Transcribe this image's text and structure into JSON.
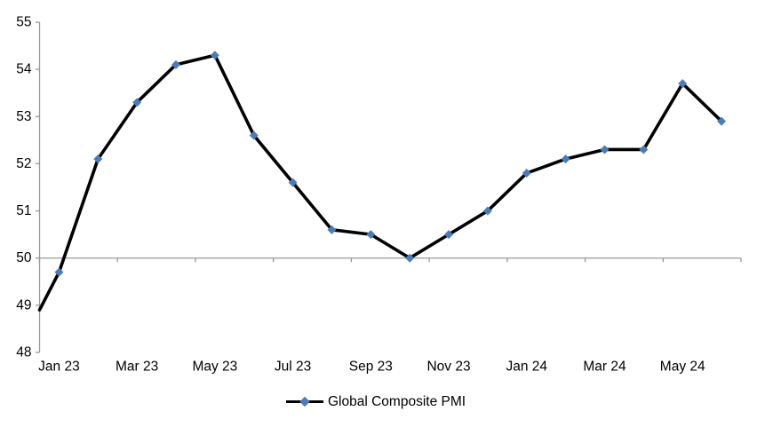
{
  "chart_data": {
    "type": "line",
    "title": "",
    "categories": [
      "Jan 23",
      "Feb 23",
      "Mar 23",
      "Apr 23",
      "May 23",
      "Jun 23",
      "Jul 23",
      "Aug 23",
      "Sep 23",
      "Oct 23",
      "Nov 23",
      "Dec 23",
      "Jan 24",
      "Feb 24",
      "Mar 24",
      "Apr 24",
      "May 24",
      "Jun 24"
    ],
    "series": [
      {
        "name": "Global Composite PMI",
        "values": [
          49.7,
          52.1,
          53.3,
          54.1,
          54.3,
          52.6,
          51.6,
          50.6,
          50.5,
          50.0,
          50.5,
          51.0,
          51.8,
          52.1,
          52.3,
          52.3,
          53.7,
          52.9
        ],
        "marker": "diamond"
      }
    ],
    "lead_in_value_at_axis": 48.9,
    "x_tick_labels": [
      "Jan 23",
      "Mar 23",
      "May 23",
      "Jul 23",
      "Sep 23",
      "Nov 23",
      "Jan 24",
      "Mar 24",
      "May 24"
    ],
    "y_ticks": [
      48,
      49,
      50,
      51,
      52,
      53,
      54,
      55
    ],
    "ylim": [
      48,
      55
    ],
    "x_axis_cross_value": 50,
    "grid": "off",
    "legend": {
      "label": "Global Composite PMI",
      "position": "bottom-center"
    },
    "colors": {
      "line": "#000000",
      "marker": "#4a7cbb",
      "axis": "#999999",
      "text": "#000000"
    }
  }
}
